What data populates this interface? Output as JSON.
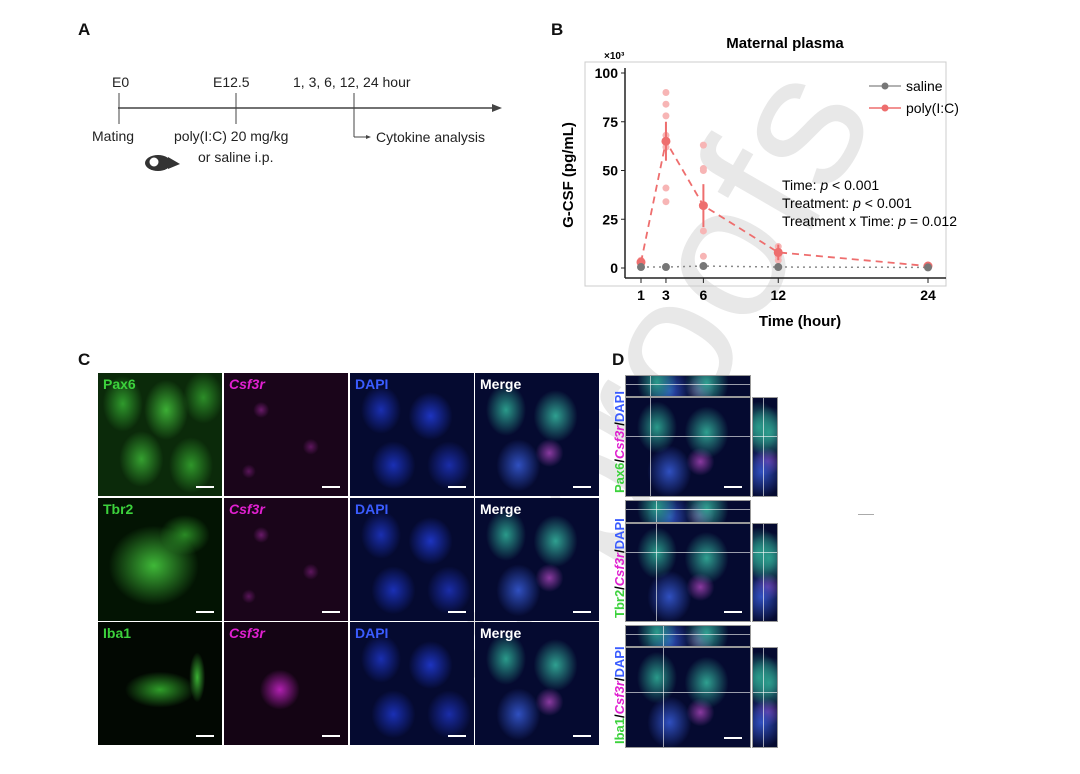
{
  "panel_labels": {
    "a": "A",
    "b": "B",
    "c": "C",
    "d": "D"
  },
  "timeline": {
    "e0": "E0",
    "e12": "E12.5",
    "hours": "1, 3, 6, 12, 24 hour",
    "mating": "Mating",
    "treatment_1": "poly(I:C) 20 mg/kg",
    "treatment_2": "or saline i.p.",
    "analysis": "Cytokine analysis"
  },
  "chart_data": {
    "type": "line",
    "title": "Maternal plasma",
    "xlabel": "Time (hour)",
    "ylabel": "G-CSF (pg/mL)",
    "y_multiplier": "×10³",
    "x": [
      1,
      3,
      6,
      12,
      24
    ],
    "xticks": [
      "1",
      "3",
      "6",
      "12",
      "24"
    ],
    "yticks": [
      "0",
      "25",
      "50",
      "75",
      "100"
    ],
    "ylim": [
      0,
      100
    ],
    "xlim": [
      0,
      25
    ],
    "legend_position": "top-right",
    "series": [
      {
        "name": "saline",
        "color": "#666666",
        "values": [
          0.5,
          0.5,
          1,
          0.5,
          0.3
        ],
        "points": [
          [
            1,
            0.5
          ],
          [
            3,
            0.5
          ],
          [
            6,
            1
          ],
          [
            12,
            0.5
          ],
          [
            24,
            0.3
          ]
        ]
      },
      {
        "name": "poly(I:C)",
        "color": "#ee6e6e",
        "values": [
          3,
          65,
          32,
          8,
          1
        ],
        "error": [
          1.5,
          10,
          11,
          4,
          0.5
        ],
        "points": [
          [
            1,
            4
          ],
          [
            1,
            2
          ],
          [
            1,
            1
          ],
          [
            3,
            90
          ],
          [
            3,
            84
          ],
          [
            3,
            78
          ],
          [
            3,
            68
          ],
          [
            3,
            62
          ],
          [
            3,
            41
          ],
          [
            3,
            34
          ],
          [
            6,
            63
          ],
          [
            6,
            51
          ],
          [
            6,
            50
          ],
          [
            6,
            19
          ],
          [
            6,
            6
          ],
          [
            12,
            11
          ],
          [
            12,
            6
          ],
          [
            12,
            4
          ],
          [
            24,
            1.5
          ],
          [
            24,
            0.5
          ]
        ]
      }
    ],
    "annotations": {
      "time": "Time: ",
      "treatment": "Treatment: ",
      "interaction": "Treatment x Time: ",
      "p": "p",
      "time_val": " < 0.001",
      "treatment_val": " < 0.001",
      "interaction_val": " = 0.012"
    }
  },
  "panel_c": {
    "rows": [
      {
        "cols": [
          "Pax6",
          "Csf3r",
          "DAPI",
          "Merge"
        ]
      },
      {
        "cols": [
          "Tbr2",
          "Csf3r",
          "DAPI",
          "Merge"
        ]
      },
      {
        "cols": [
          "Iba1",
          "Csf3r",
          "DAPI",
          "Merge"
        ]
      }
    ]
  },
  "panel_d": {
    "rows": [
      {
        "marker": "Pax6",
        "sep1": "/",
        "gene": "Csf3r",
        "sep2": "/",
        "dapi": "DAPI"
      },
      {
        "marker": "Tbr2",
        "sep1": "/",
        "gene": "Csf3r",
        "sep2": "/",
        "dapi": "DAPI"
      },
      {
        "marker": "Iba1",
        "sep1": "/",
        "gene": "Csf3r",
        "sep2": "/",
        "dapi": "DAPI"
      }
    ]
  },
  "colors": {
    "green": "#3cd23c",
    "magenta": "#e020d0",
    "blue": "#3a5cff"
  },
  "watermark": "Journal Pre-proofs"
}
